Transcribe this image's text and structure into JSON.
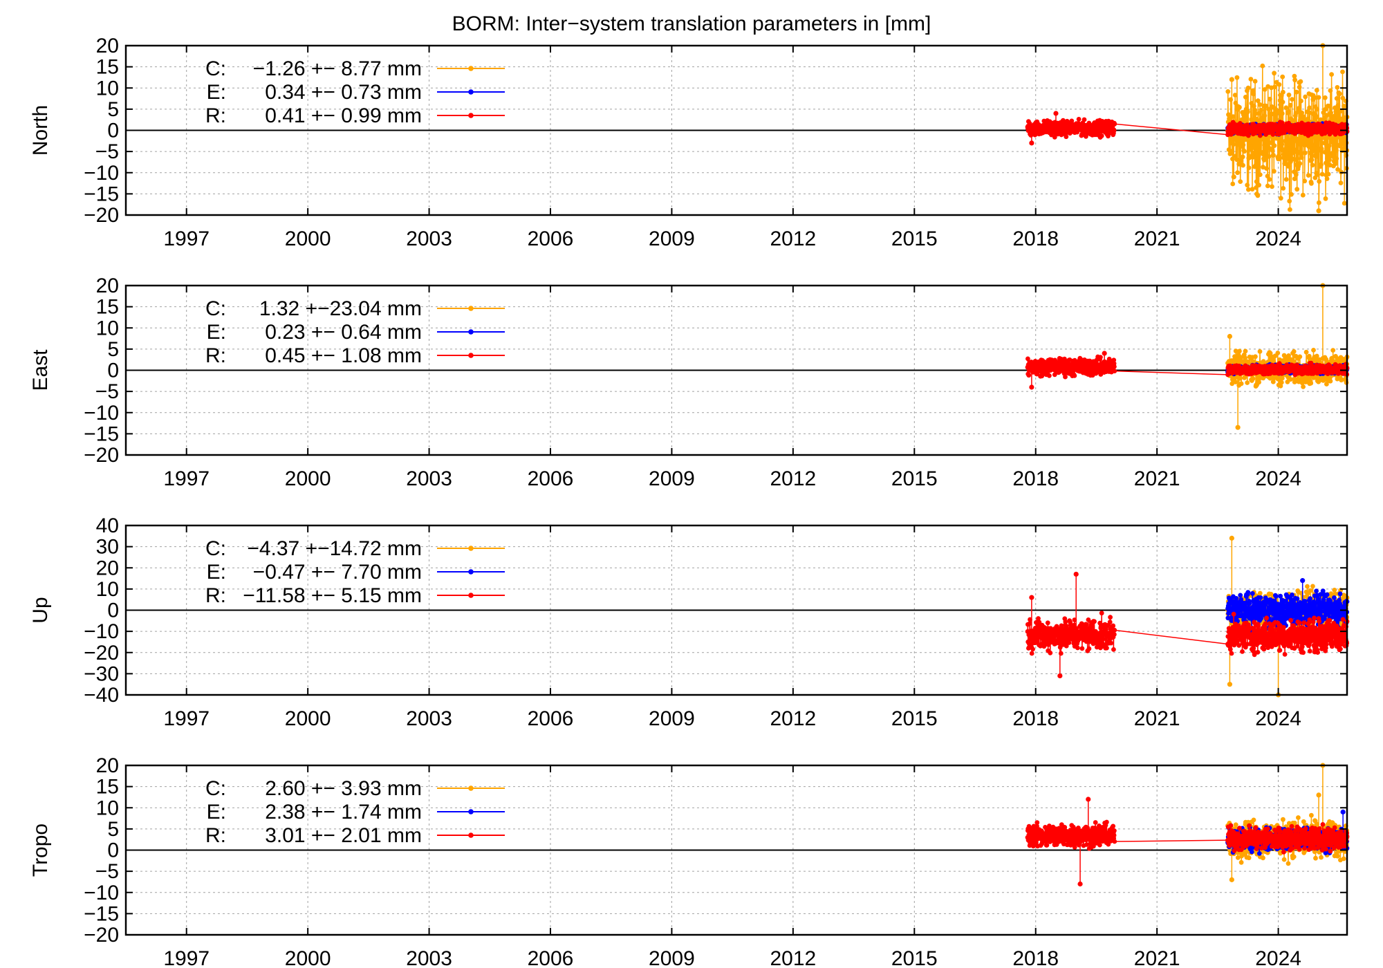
{
  "figure_title": "BORM: Inter−system translation parameters in [mm]",
  "colors": {
    "C": "#ffa500",
    "E": "#0000ff",
    "R": "#ff0000",
    "axis": "#000000",
    "grid": "#a0a0a0"
  },
  "chart_data": [
    {
      "type": "line",
      "ylabel": "North",
      "ylim": [
        -20,
        20
      ],
      "yticks": [
        20,
        15,
        10,
        5,
        0,
        -5,
        -10,
        -15,
        -20
      ],
      "xlim": [
        1995.5,
        2025.7
      ],
      "xticks": [
        1997,
        2000,
        2003,
        2006,
        2009,
        2012,
        2015,
        2018,
        2021,
        2024
      ],
      "grid": true,
      "legend_position": "top-left",
      "legend": [
        {
          "label": "C:",
          "stat": "−1.26 +− 8.77 mm",
          "series": "C"
        },
        {
          "label": "E:",
          "stat": "0.34 +− 0.73 mm",
          "series": "E"
        },
        {
          "label": "R:",
          "stat": "0.41 +− 0.99 mm",
          "series": "R"
        }
      ],
      "series": [
        {
          "name": "C",
          "segments": [
            {
              "x0": 2022.75,
              "x1": 2025.7,
              "mean": -1.26,
              "spread": 8.77
            }
          ],
          "outliers": [
            [
              2022.85,
              12
            ],
            [
              2022.9,
              -11
            ],
            [
              2025.0,
              -19
            ],
            [
              2025.1,
              20
            ]
          ]
        },
        {
          "name": "E",
          "segments": [
            {
              "x0": 2022.75,
              "x1": 2025.7,
              "mean": 0.34,
              "spread": 0.73
            }
          ],
          "outliers": []
        },
        {
          "name": "R",
          "segments": [
            {
              "x0": 2017.8,
              "x1": 2019.95,
              "mean": 0.5,
              "spread": 1.2
            },
            {
              "x0": 2022.75,
              "x1": 2025.7,
              "mean": 0.35,
              "spread": 0.9
            }
          ],
          "outliers": [
            [
              2018.5,
              4
            ],
            [
              2017.9,
              -3
            ]
          ]
        }
      ]
    },
    {
      "type": "line",
      "ylabel": "East",
      "ylim": [
        -20,
        20
      ],
      "yticks": [
        20,
        15,
        10,
        5,
        0,
        -5,
        -10,
        -15,
        -20
      ],
      "xlim": [
        1995.5,
        2025.7
      ],
      "xticks": [
        1997,
        2000,
        2003,
        2006,
        2009,
        2012,
        2015,
        2018,
        2021,
        2024
      ],
      "grid": true,
      "legend_position": "top-left",
      "legend": [
        {
          "label": "C:",
          "stat": "1.32 +−23.04 mm",
          "series": "C"
        },
        {
          "label": "E:",
          "stat": "0.23 +− 0.64 mm",
          "series": "E"
        },
        {
          "label": "R:",
          "stat": "0.45 +− 1.08 mm",
          "series": "R"
        }
      ],
      "series": [
        {
          "name": "C",
          "segments": [
            {
              "x0": 2022.75,
              "x1": 2025.7,
              "mean": 0.3,
              "spread": 2.5
            }
          ],
          "outliers": [
            [
              2022.8,
              8
            ],
            [
              2023.0,
              -13.5
            ],
            [
              2025.1,
              20
            ]
          ]
        },
        {
          "name": "E",
          "segments": [
            {
              "x0": 2022.75,
              "x1": 2025.7,
              "mean": 0.23,
              "spread": 0.64
            }
          ],
          "outliers": []
        },
        {
          "name": "R",
          "segments": [
            {
              "x0": 2017.8,
              "x1": 2019.95,
              "mean": 0.8,
              "spread": 1.4
            },
            {
              "x0": 2022.75,
              "x1": 2025.7,
              "mean": 0.2,
              "spread": 0.8
            }
          ],
          "outliers": [
            [
              2019.7,
              4
            ],
            [
              2017.9,
              -4
            ]
          ]
        }
      ]
    },
    {
      "type": "line",
      "ylabel": "Up",
      "ylim": [
        -40,
        40
      ],
      "yticks": [
        40,
        30,
        20,
        10,
        0,
        -10,
        -20,
        -30,
        -40
      ],
      "xlim": [
        1995.5,
        2025.7
      ],
      "xticks": [
        1997,
        2000,
        2003,
        2006,
        2009,
        2012,
        2015,
        2018,
        2021,
        2024
      ],
      "grid": true,
      "legend_position": "top-left",
      "legend": [
        {
          "label": "C:",
          "stat": "−4.37 +−14.72 mm",
          "series": "C"
        },
        {
          "label": "E:",
          "stat": "−0.47 +− 7.70 mm",
          "series": "E"
        },
        {
          "label": "R:",
          "stat": "−11.58 +− 5.15 mm",
          "series": "R"
        }
      ],
      "series": [
        {
          "name": "C",
          "segments": [
            {
              "x0": 2022.75,
              "x1": 2025.7,
              "mean": 0,
              "spread": 6
            }
          ],
          "outliers": [
            [
              2022.85,
              34
            ],
            [
              2022.8,
              -35
            ],
            [
              2024.0,
              -40
            ]
          ]
        },
        {
          "name": "E",
          "segments": [
            {
              "x0": 2022.75,
              "x1": 2025.7,
              "mean": 0,
              "spread": 5
            }
          ],
          "outliers": [
            [
              2024.6,
              14
            ]
          ]
        },
        {
          "name": "R",
          "segments": [
            {
              "x0": 2017.8,
              "x1": 2019.95,
              "mean": -11.5,
              "spread": 5
            },
            {
              "x0": 2022.75,
              "x1": 2025.7,
              "mean": -12,
              "spread": 5
            }
          ],
          "outliers": [
            [
              2019.0,
              17
            ],
            [
              2017.9,
              6
            ],
            [
              2018.6,
              -31
            ]
          ]
        }
      ]
    },
    {
      "type": "line",
      "ylabel": "Tropo",
      "ylim": [
        -20,
        20
      ],
      "yticks": [
        20,
        15,
        10,
        5,
        0,
        -5,
        -10,
        -15,
        -20
      ],
      "xlim": [
        1995.5,
        2025.7
      ],
      "xticks": [
        1997,
        2000,
        2003,
        2006,
        2009,
        2012,
        2015,
        2018,
        2021,
        2024
      ],
      "grid": true,
      "legend_position": "top-left",
      "legend": [
        {
          "label": "C:",
          "stat": "2.60 +− 3.93 mm",
          "series": "C"
        },
        {
          "label": "E:",
          "stat": "2.38 +− 1.74 mm",
          "series": "E"
        },
        {
          "label": "R:",
          "stat": "3.01 +− 2.01 mm",
          "series": "R"
        }
      ],
      "series": [
        {
          "name": "C",
          "segments": [
            {
              "x0": 2022.75,
              "x1": 2025.7,
              "mean": 2.6,
              "spread": 3
            }
          ],
          "outliers": [
            [
              2022.85,
              -7
            ],
            [
              2025.0,
              13
            ],
            [
              2025.1,
              20
            ]
          ]
        },
        {
          "name": "E",
          "segments": [
            {
              "x0": 2022.75,
              "x1": 2025.7,
              "mean": 2.4,
              "spread": 1.7
            }
          ],
          "outliers": [
            [
              2025.6,
              9
            ]
          ]
        },
        {
          "name": "R",
          "segments": [
            {
              "x0": 2017.8,
              "x1": 2019.95,
              "mean": 3.5,
              "spread": 1.8
            },
            {
              "x0": 2022.75,
              "x1": 2025.7,
              "mean": 2.8,
              "spread": 1.8
            }
          ],
          "outliers": [
            [
              2019.3,
              12
            ],
            [
              2019.1,
              -8
            ]
          ]
        }
      ]
    }
  ]
}
